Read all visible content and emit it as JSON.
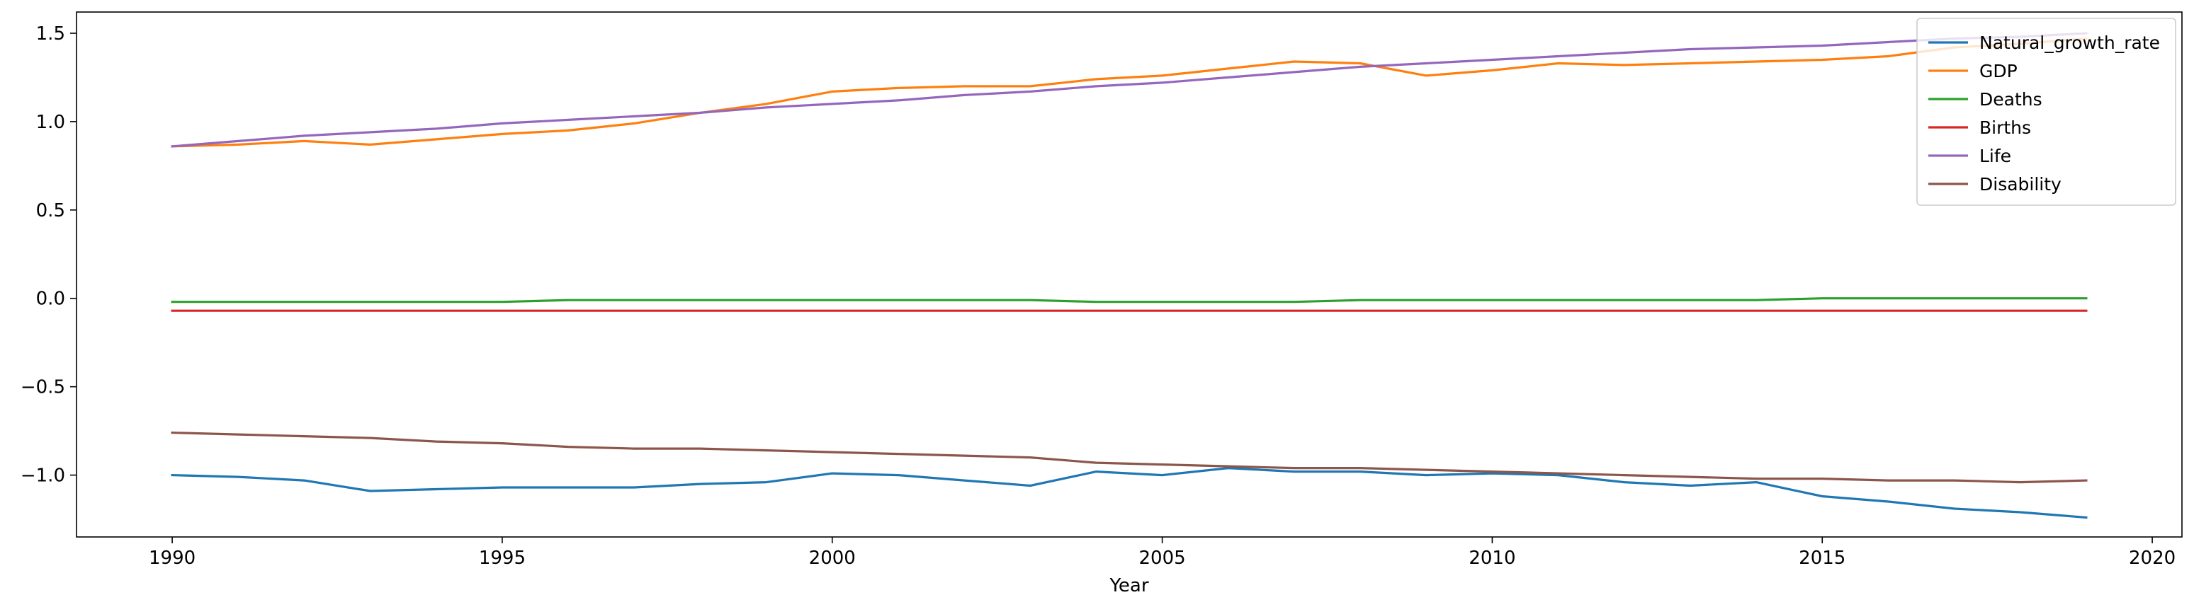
{
  "chart_data": {
    "type": "line",
    "title": "",
    "xlabel": "Year",
    "ylabel": "",
    "xlim": [
      1988.55,
      2020.45
    ],
    "ylim": [
      -1.35,
      1.62
    ],
    "xticks": [
      1990,
      1995,
      2000,
      2005,
      2010,
      2015,
      2020
    ],
    "xtick_labels": [
      "1990",
      "1995",
      "2000",
      "2005",
      "2010",
      "2015",
      "2020"
    ],
    "yticks": [
      1.5,
      1.0,
      0.5,
      0.0,
      -0.5,
      -1.0
    ],
    "ytick_labels": [
      "1.5",
      "1.0",
      "0.5",
      "0.0",
      "−0.5",
      "−1.0"
    ],
    "grid": false,
    "legend_position": "top-right",
    "x": [
      1990,
      1991,
      1992,
      1993,
      1994,
      1995,
      1996,
      1997,
      1998,
      1999,
      2000,
      2001,
      2002,
      2003,
      2004,
      2005,
      2006,
      2007,
      2008,
      2009,
      2010,
      2011,
      2012,
      2013,
      2014,
      2015,
      2016,
      2017,
      2018,
      2019
    ],
    "series": [
      {
        "name": "Natural_growth_rate",
        "color": "#1f77b4",
        "values": [
          -1.0,
          -1.01,
          -1.03,
          -1.09,
          -1.08,
          -1.07,
          -1.07,
          -1.07,
          -1.05,
          -1.04,
          -0.99,
          -1.0,
          -1.03,
          -1.06,
          -0.98,
          -1.0,
          -0.96,
          -0.98,
          -0.98,
          -1.0,
          -0.99,
          -1.0,
          -1.04,
          -1.06,
          -1.04,
          -1.12,
          -1.15,
          -1.19,
          -1.21,
          -1.24
        ]
      },
      {
        "name": "GDP",
        "color": "#ff7f0e",
        "values": [
          0.86,
          0.87,
          0.89,
          0.87,
          0.9,
          0.93,
          0.95,
          0.99,
          1.05,
          1.1,
          1.17,
          1.19,
          1.2,
          1.2,
          1.24,
          1.26,
          1.3,
          1.34,
          1.33,
          1.26,
          1.29,
          1.33,
          1.32,
          1.33,
          1.34,
          1.35,
          1.37,
          1.42,
          1.44,
          1.47
        ]
      },
      {
        "name": "Deaths",
        "color": "#2ca02c",
        "values": [
          -0.02,
          -0.02,
          -0.02,
          -0.02,
          -0.02,
          -0.02,
          -0.01,
          -0.01,
          -0.01,
          -0.01,
          -0.01,
          -0.01,
          -0.01,
          -0.01,
          -0.02,
          -0.02,
          -0.02,
          -0.02,
          -0.01,
          -0.01,
          -0.01,
          -0.01,
          -0.01,
          -0.01,
          -0.01,
          0.0,
          0.0,
          0.0,
          0.0,
          0.0
        ]
      },
      {
        "name": "Births",
        "color": "#d62728",
        "values": [
          -0.07,
          -0.07,
          -0.07,
          -0.07,
          -0.07,
          -0.07,
          -0.07,
          -0.07,
          -0.07,
          -0.07,
          -0.07,
          -0.07,
          -0.07,
          -0.07,
          -0.07,
          -0.07,
          -0.07,
          -0.07,
          -0.07,
          -0.07,
          -0.07,
          -0.07,
          -0.07,
          -0.07,
          -0.07,
          -0.07,
          -0.07,
          -0.07,
          -0.07,
          -0.07
        ]
      },
      {
        "name": "Life",
        "color": "#9467bd",
        "values": [
          0.86,
          0.89,
          0.92,
          0.94,
          0.96,
          0.99,
          1.01,
          1.03,
          1.05,
          1.08,
          1.1,
          1.12,
          1.15,
          1.17,
          1.2,
          1.22,
          1.25,
          1.28,
          1.31,
          1.33,
          1.35,
          1.37,
          1.39,
          1.41,
          1.42,
          1.43,
          1.45,
          1.47,
          1.48,
          1.5
        ]
      },
      {
        "name": "Disability",
        "color": "#8c564b",
        "values": [
          -0.76,
          -0.77,
          -0.78,
          -0.79,
          -0.81,
          -0.82,
          -0.84,
          -0.85,
          -0.85,
          -0.86,
          -0.87,
          -0.88,
          -0.89,
          -0.9,
          -0.93,
          -0.94,
          -0.95,
          -0.96,
          -0.96,
          -0.97,
          -0.98,
          -0.99,
          -1.0,
          -1.01,
          -1.02,
          -1.02,
          -1.03,
          -1.03,
          -1.04,
          -1.03
        ]
      }
    ]
  }
}
